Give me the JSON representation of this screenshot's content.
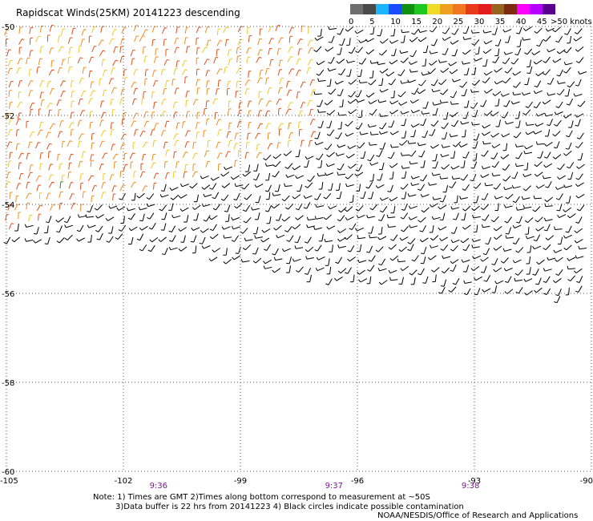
{
  "title": "Rapidscat Winds(25KM)  20141223  descending",
  "legend": {
    "labels": [
      "0",
      "5",
      "10",
      "15",
      "20",
      "25",
      "30",
      "35",
      "40",
      "45"
    ],
    "max_label": ">50 knots",
    "colors": [
      "#6e6e6e",
      "#4a4a4a",
      "#1ab4ff",
      "#1a4cff",
      "#109010",
      "#1ec81e",
      "#f0dc28",
      "#f0a020",
      "#f07820",
      "#e83a1a",
      "#e01c1c",
      "#96641e",
      "#7c2a10",
      "#ff00ff",
      "#b400ff",
      "#5a008c"
    ]
  },
  "chart_data": {
    "type": "map",
    "lat_labels": [
      "-50",
      "-52",
      "-54",
      "-56",
      "-58",
      "-60"
    ],
    "lon_labels": [
      "-105",
      "-102",
      "-99",
      "-96",
      "-93",
      "-90"
    ],
    "lat_range": [
      -60,
      -50
    ],
    "lon_range": [
      -105,
      -90
    ],
    "grid": "dotted",
    "time_labels": [
      {
        "text": "9:36",
        "lon": -101.1
      },
      {
        "text": "9:37",
        "lon": -96.6
      },
      {
        "text": "9:38",
        "lon": -93.1
      }
    ],
    "time_color": "#7a1a8c",
    "wind_colors": {
      "light_green": "#2a8a2a",
      "yellow": "#f0c828",
      "orange": "#f08c20",
      "red_orange": "#e0501a",
      "black": "#000000"
    }
  },
  "notes": {
    "line1": "Note: 1) Times are GMT 2)Times along bottom correspond to measurement at ~50S",
    "line2": "3)Data buffer is 22 hrs from 20141223 4) Black circles indicate possible contamination",
    "credit": "NOAA/NESDIS/Office of Research and Applications"
  }
}
